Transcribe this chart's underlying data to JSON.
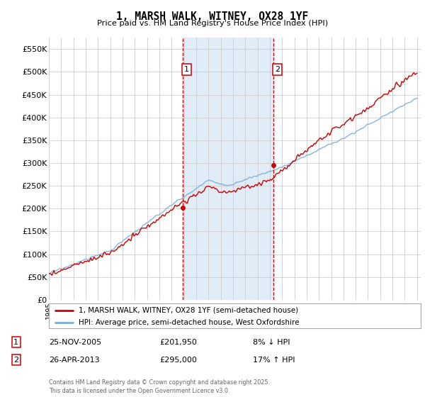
{
  "title": "1, MARSH WALK, WITNEY, OX28 1YF",
  "subtitle": "Price paid vs. HM Land Registry's House Price Index (HPI)",
  "ylabel_ticks": [
    "£0",
    "£50K",
    "£100K",
    "£150K",
    "£200K",
    "£250K",
    "£300K",
    "£350K",
    "£400K",
    "£450K",
    "£500K",
    "£550K"
  ],
  "ytick_values": [
    0,
    50000,
    100000,
    150000,
    200000,
    250000,
    300000,
    350000,
    400000,
    450000,
    500000,
    550000
  ],
  "ylim": [
    0,
    575000
  ],
  "legend_line1": "1, MARSH WALK, WITNEY, OX28 1YF (semi-detached house)",
  "legend_line2": "HPI: Average price, semi-detached house, West Oxfordshire",
  "annotation1_label": "1",
  "annotation1_date": "25-NOV-2005",
  "annotation1_price": "£201,950",
  "annotation1_hpi": "8% ↓ HPI",
  "annotation2_label": "2",
  "annotation2_date": "26-APR-2013",
  "annotation2_price": "£295,000",
  "annotation2_hpi": "17% ↑ HPI",
  "footer": "Contains HM Land Registry data © Crown copyright and database right 2025.\nThis data is licensed under the Open Government Licence v3.0.",
  "line_red_color": "#cc0000",
  "line_blue_color": "#7aaddb",
  "shade_color": "#e0edf8",
  "annotation_line_color": "#cc0000",
  "grid_color": "#cccccc",
  "background_color": "#ffffff",
  "sale1_year": 2005.9,
  "sale2_year": 2013.3,
  "sale1_price": 201950,
  "sale2_price": 295000,
  "xstart": 1995,
  "xend": 2025,
  "red_noise_scale": 3500,
  "blue_noise_scale": 1800
}
